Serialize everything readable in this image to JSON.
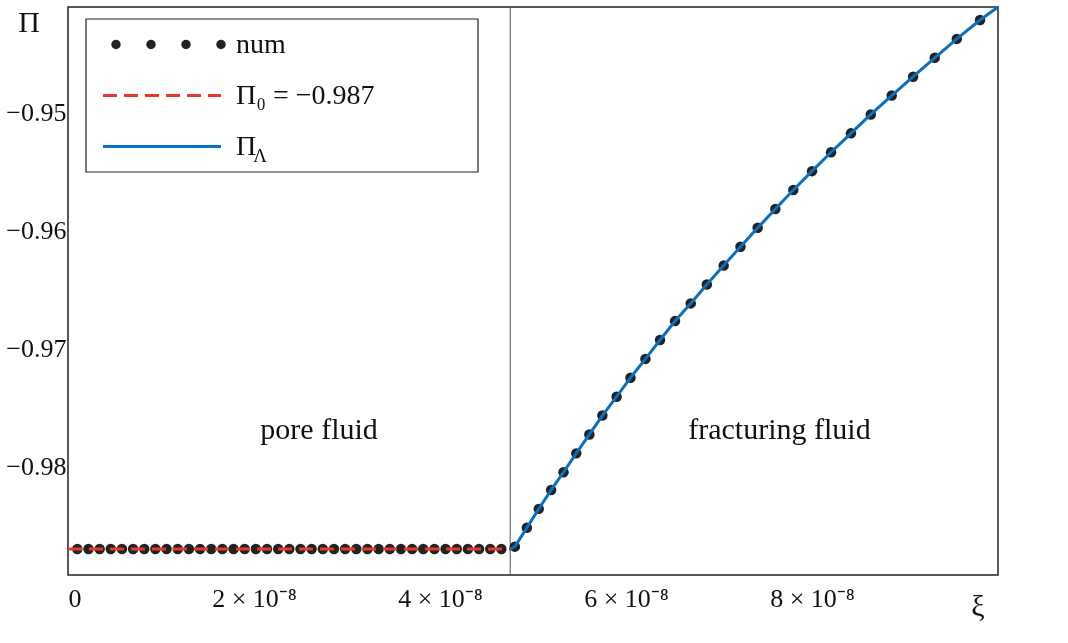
{
  "chart_data": {
    "type": "scatter",
    "xlabel": "ξ",
    "ylabel": "Π",
    "xlim": [
      0,
      1e-07
    ],
    "ylim": [
      -0.9892,
      -0.9411
    ],
    "xticks": [
      {
        "value": 0,
        "label": "0"
      },
      {
        "value": 2e-08,
        "label": "2 × 10⁻⁸"
      },
      {
        "value": 4e-08,
        "label": "4 × 10⁻⁸"
      },
      {
        "value": 6e-08,
        "label": "6 × 10⁻⁸"
      },
      {
        "value": 8e-08,
        "label": "8 × 10⁻⁸"
      }
    ],
    "yticks": [
      -0.98,
      -0.97,
      -0.96,
      -0.95
    ],
    "grid": false,
    "legend": "top left",
    "series": [
      {
        "name": "num",
        "marker": "circle",
        "color": "#222222",
        "x": [
          1e-09,
          2.2e-09,
          3.4e-09,
          4.6e-09,
          5.8e-09,
          7e-09,
          8.2e-09,
          9.4e-09,
          1.06e-08,
          1.18e-08,
          1.3e-08,
          1.42e-08,
          1.54e-08,
          1.66e-08,
          1.78e-08,
          1.9e-08,
          2.02e-08,
          2.14e-08,
          2.26e-08,
          2.38e-08,
          2.5e-08,
          2.62e-08,
          2.74e-08,
          2.86e-08,
          2.98e-08,
          3.1e-08,
          3.22e-08,
          3.34e-08,
          3.46e-08,
          3.58e-08,
          3.7e-08,
          3.82e-08,
          3.94e-08,
          4.06e-08,
          4.18e-08,
          4.3e-08,
          4.42e-08,
          4.54e-08,
          4.66e-08,
          4.805e-08,
          4.934e-08,
          5.062e-08,
          5.195e-08,
          5.328e-08,
          5.465e-08,
          5.606e-08,
          5.746e-08,
          5.899e-08,
          6.048e-08,
          6.209e-08,
          6.366e-08,
          6.527e-08,
          6.696e-08,
          6.869e-08,
          7.05e-08,
          7.231e-08,
          7.416e-08,
          7.606e-08,
          7.799e-08,
          8e-08,
          8.205e-08,
          8.419e-08,
          8.632e-08,
          8.857e-08,
          9.087e-08,
          9.32e-08,
          9.557e-08,
          9.807e-08
        ],
        "values": [
          -0.987,
          -0.987,
          -0.987,
          -0.987,
          -0.987,
          -0.987,
          -0.987,
          -0.987,
          -0.987,
          -0.987,
          -0.987,
          -0.987,
          -0.987,
          -0.987,
          -0.987,
          -0.987,
          -0.987,
          -0.987,
          -0.987,
          -0.987,
          -0.987,
          -0.987,
          -0.987,
          -0.987,
          -0.987,
          -0.987,
          -0.987,
          -0.987,
          -0.987,
          -0.987,
          -0.987,
          -0.987,
          -0.987,
          -0.987,
          -0.987,
          -0.987,
          -0.987,
          -0.987,
          -0.987,
          -0.9868,
          -0.9852,
          -0.9836,
          -0.982,
          -0.9805,
          -0.9789,
          -0.9773,
          -0.9757,
          -0.9741,
          -0.9725,
          -0.9709,
          -0.9693,
          -0.9677,
          -0.9662,
          -0.9646,
          -0.963,
          -0.9614,
          -0.9598,
          -0.9582,
          -0.9566,
          -0.955,
          -0.9534,
          -0.9518,
          -0.9502,
          -0.9486,
          -0.947,
          -0.9454,
          -0.9438,
          -0.9422
        ]
      },
      {
        "name": "Π₀ = −0.987",
        "type": "line",
        "line_style": "dashed",
        "color": "#e8382c",
        "x": [
          0,
          4.755e-08
        ],
        "values": [
          -0.987,
          -0.987
        ]
      },
      {
        "name": "Π$_{Λ}$",
        "type": "line",
        "line_style": "solid",
        "color": "#0a6fbf",
        "x": [
          4.755e-08,
          4.805e-08,
          4.934e-08,
          5.062e-08,
          5.195e-08,
          5.328e-08,
          5.465e-08,
          5.606e-08,
          5.746e-08,
          5.899e-08,
          6.048e-08,
          6.209e-08,
          6.366e-08,
          6.527e-08,
          6.696e-08,
          6.869e-08,
          7.05e-08,
          7.231e-08,
          7.416e-08,
          7.606e-08,
          7.799e-08,
          8e-08,
          8.205e-08,
          8.419e-08,
          8.632e-08,
          8.857e-08,
          9.087e-08,
          9.32e-08,
          9.557e-08,
          9.807e-08,
          1e-07
        ],
        "values": [
          -0.987,
          -0.9868,
          -0.9852,
          -0.9836,
          -0.982,
          -0.9805,
          -0.9789,
          -0.9773,
          -0.9757,
          -0.9741,
          -0.9725,
          -0.9709,
          -0.9693,
          -0.9677,
          -0.9662,
          -0.9646,
          -0.963,
          -0.9614,
          -0.9598,
          -0.9582,
          -0.9566,
          -0.955,
          -0.9534,
          -0.9518,
          -0.9502,
          -0.9486,
          -0.947,
          -0.9454,
          -0.9438,
          -0.9422,
          -0.9411
        ]
      }
    ],
    "ref_lines": [
      {
        "axis": "x",
        "value": 4.755e-08,
        "color": "#555555"
      }
    ],
    "annotations": [
      "pore fluid",
      "fracturing fluid"
    ]
  }
}
